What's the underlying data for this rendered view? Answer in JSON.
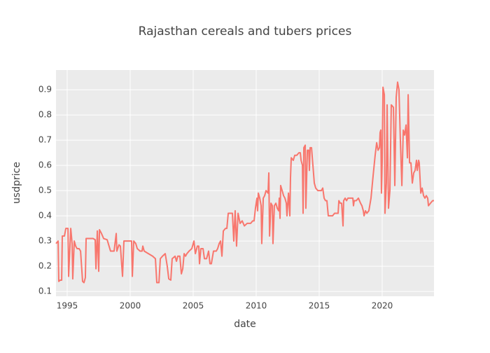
{
  "chart_data": {
    "type": "line",
    "title": "Rajasthan cereals and tubers prices",
    "x_label": "date",
    "y_label": "usdprice",
    "color": "#F8766D",
    "grid": true,
    "xlim": [
      1994.11,
      2024.11
    ],
    "xticks": [
      1995,
      2000,
      2005,
      2010,
      2015,
      2020
    ],
    "ylim": [
      0.081,
      0.978
    ],
    "yticks": [
      0.1,
      0.2,
      0.3,
      0.4,
      0.5,
      0.6,
      0.7,
      0.8,
      0.9
    ],
    "x": [
      1994.11,
      1994.28,
      1994.33,
      1994.44,
      1994.56,
      1994.61,
      1994.78,
      1994.89,
      1995.06,
      1995.11,
      1995.28,
      1995.39,
      1995.44,
      1995.56,
      1995.67,
      1995.78,
      1995.94,
      1996.06,
      1996.22,
      1996.33,
      1996.44,
      1996.5,
      1996.78,
      1997.06,
      1997.22,
      1997.28,
      1997.39,
      1997.5,
      1997.56,
      1997.72,
      1997.89,
      1998.17,
      1998.44,
      1998.72,
      1998.89,
      1998.94,
      1999.11,
      1999.22,
      1999.39,
      1999.5,
      1999.83,
      2000.11,
      2000.17,
      2000.28,
      2000.44,
      2000.56,
      2000.78,
      2000.94,
      2001.0,
      2001.11,
      2001.44,
      2001.78,
      2002.0,
      2002.11,
      2002.28,
      2002.39,
      2002.56,
      2002.78,
      2002.94,
      2003.06,
      2003.22,
      2003.33,
      2003.56,
      2003.67,
      2003.78,
      2003.94,
      2004.06,
      2004.17,
      2004.28,
      2004.39,
      2004.5,
      2004.67,
      2004.89,
      2005.06,
      2005.17,
      2005.33,
      2005.44,
      2005.5,
      2005.61,
      2005.78,
      2005.89,
      2006.06,
      2006.22,
      2006.33,
      2006.44,
      2006.61,
      2006.83,
      2006.94,
      2007.06,
      2007.17,
      2007.28,
      2007.39,
      2007.56,
      2007.67,
      2007.78,
      2007.94,
      2008.11,
      2008.22,
      2008.33,
      2008.44,
      2008.56,
      2008.72,
      2008.89,
      2009.06,
      2009.28,
      2009.56,
      2009.72,
      2009.83,
      2009.94,
      2010.06,
      2010.11,
      2010.17,
      2010.28,
      2010.39,
      2010.44,
      2010.56,
      2010.67,
      2010.78,
      2010.94,
      2011.0,
      2011.06,
      2011.17,
      2011.28,
      2011.33,
      2011.44,
      2011.56,
      2011.67,
      2011.78,
      2011.83,
      2011.89,
      2011.94,
      2012.06,
      2012.17,
      2012.28,
      2012.39,
      2012.44,
      2012.56,
      2012.67,
      2012.72,
      2012.78,
      2012.94,
      2013.06,
      2013.22,
      2013.39,
      2013.5,
      2013.56,
      2013.67,
      2013.72,
      2013.78,
      2013.89,
      2013.94,
      2014.06,
      2014.17,
      2014.22,
      2014.28,
      2014.39,
      2014.5,
      2014.61,
      2014.72,
      2014.89,
      2015.0,
      2015.17,
      2015.28,
      2015.39,
      2015.5,
      2015.61,
      2015.72,
      2015.89,
      2016.06,
      2016.22,
      2016.33,
      2016.5,
      2016.56,
      2016.67,
      2016.78,
      2016.89,
      2016.94,
      2017.06,
      2017.17,
      2017.28,
      2017.39,
      2017.5,
      2017.67,
      2017.72,
      2017.78,
      2017.94,
      2018.11,
      2018.28,
      2018.39,
      2018.5,
      2018.56,
      2018.67,
      2018.78,
      2018.94,
      2019.11,
      2019.28,
      2019.44,
      2019.56,
      2019.67,
      2019.78,
      2019.83,
      2019.89,
      2019.94,
      2020.0,
      2020.06,
      2020.17,
      2020.22,
      2020.33,
      2020.39,
      2020.5,
      2020.61,
      2020.72,
      2020.89,
      2021.0,
      2021.11,
      2021.22,
      2021.33,
      2021.44,
      2021.56,
      2021.67,
      2021.78,
      2021.89,
      2022.0,
      2022.06,
      2022.17,
      2022.28,
      2022.39,
      2022.5,
      2022.61,
      2022.72,
      2022.78,
      2022.89,
      2022.94,
      2023.06,
      2023.17,
      2023.28,
      2023.39,
      2023.5,
      2023.61,
      2023.67,
      2023.83,
      2024.0,
      2024.11
    ],
    "values": [
      0.29,
      0.3,
      0.14,
      0.145,
      0.145,
      0.32,
      0.32,
      0.35,
      0.35,
      0.16,
      0.35,
      0.29,
      0.15,
      0.3,
      0.28,
      0.27,
      0.27,
      0.26,
      0.14,
      0.135,
      0.155,
      0.31,
      0.31,
      0.31,
      0.305,
      0.19,
      0.34,
      0.18,
      0.345,
      0.33,
      0.31,
      0.305,
      0.26,
      0.26,
      0.33,
      0.26,
      0.285,
      0.28,
      0.16,
      0.3,
      0.3,
      0.3,
      0.16,
      0.3,
      0.29,
      0.27,
      0.26,
      0.26,
      0.28,
      0.26,
      0.25,
      0.24,
      0.23,
      0.135,
      0.135,
      0.23,
      0.24,
      0.25,
      0.2,
      0.15,
      0.145,
      0.23,
      0.24,
      0.22,
      0.24,
      0.24,
      0.17,
      0.19,
      0.25,
      0.24,
      0.25,
      0.26,
      0.27,
      0.3,
      0.25,
      0.28,
      0.28,
      0.21,
      0.27,
      0.27,
      0.23,
      0.23,
      0.26,
      0.21,
      0.21,
      0.26,
      0.26,
      0.27,
      0.29,
      0.3,
      0.24,
      0.34,
      0.35,
      0.35,
      0.41,
      0.41,
      0.41,
      0.3,
      0.42,
      0.28,
      0.41,
      0.37,
      0.38,
      0.36,
      0.37,
      0.37,
      0.38,
      0.38,
      0.43,
      0.47,
      0.42,
      0.49,
      0.47,
      0.44,
      0.29,
      0.47,
      0.48,
      0.5,
      0.49,
      0.57,
      0.32,
      0.45,
      0.44,
      0.29,
      0.44,
      0.45,
      0.43,
      0.42,
      0.47,
      0.39,
      0.52,
      0.5,
      0.48,
      0.47,
      0.45,
      0.4,
      0.49,
      0.4,
      0.55,
      0.63,
      0.62,
      0.64,
      0.64,
      0.65,
      0.65,
      0.62,
      0.6,
      0.41,
      0.67,
      0.68,
      0.43,
      0.66,
      0.66,
      0.58,
      0.67,
      0.67,
      0.6,
      0.53,
      0.51,
      0.5,
      0.5,
      0.5,
      0.51,
      0.47,
      0.46,
      0.46,
      0.4,
      0.4,
      0.4,
      0.41,
      0.41,
      0.41,
      0.46,
      0.45,
      0.45,
      0.36,
      0.46,
      0.47,
      0.46,
      0.47,
      0.47,
      0.47,
      0.47,
      0.44,
      0.46,
      0.46,
      0.47,
      0.45,
      0.44,
      0.42,
      0.4,
      0.42,
      0.41,
      0.42,
      0.47,
      0.56,
      0.64,
      0.69,
      0.66,
      0.67,
      0.73,
      0.74,
      0.49,
      0.62,
      0.91,
      0.88,
      0.41,
      0.53,
      0.84,
      0.43,
      0.5,
      0.84,
      0.83,
      0.52,
      0.87,
      0.93,
      0.9,
      0.7,
      0.52,
      0.74,
      0.72,
      0.76,
      0.63,
      0.88,
      0.61,
      0.61,
      0.53,
      0.57,
      0.58,
      0.62,
      0.58,
      0.62,
      0.61,
      0.49,
      0.51,
      0.48,
      0.47,
      0.48,
      0.47,
      0.44,
      0.45,
      0.46,
      0.46
    ]
  }
}
